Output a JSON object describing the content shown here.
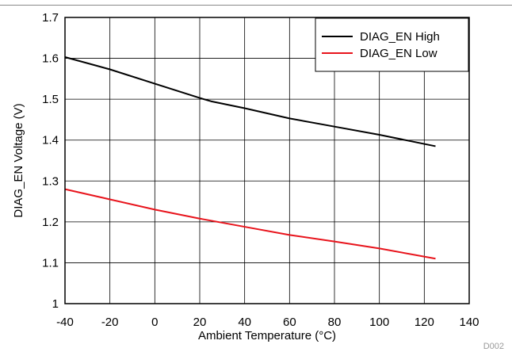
{
  "chart_data": {
    "type": "line",
    "xlabel": "Ambient Temperature (°C)",
    "ylabel": "DIAG_EN Voltage (V)",
    "xlim": [
      -40,
      140
    ],
    "ylim": [
      1.0,
      1.7
    ],
    "xticks": [
      -40,
      -20,
      0,
      20,
      40,
      60,
      80,
      100,
      120,
      140
    ],
    "yticks": [
      1,
      1.1,
      1.2,
      1.3,
      1.4,
      1.5,
      1.6,
      1.7
    ],
    "xtick_labels": [
      "-40",
      "-20",
      "0",
      "20",
      "40",
      "60",
      "80",
      "100",
      "120",
      "140"
    ],
    "ytick_labels": [
      "1",
      "1.1",
      "1.2",
      "1.3",
      "1.4",
      "1.5",
      "1.6",
      "1.7"
    ],
    "grid": true,
    "legend_position": "top-right",
    "series": [
      {
        "name": "DIAG_EN High",
        "color": "#000000",
        "x": [
          -40,
          -20,
          0,
          20,
          25,
          40,
          60,
          80,
          100,
          125
        ],
        "y": [
          1.603,
          1.573,
          1.538,
          1.503,
          1.495,
          1.478,
          1.453,
          1.433,
          1.413,
          1.385
        ]
      },
      {
        "name": "DIAG_EN Low",
        "color": "#e8141c",
        "x": [
          -40,
          -20,
          0,
          20,
          25,
          40,
          60,
          80,
          100,
          125
        ],
        "y": [
          1.28,
          1.255,
          1.23,
          1.208,
          1.203,
          1.188,
          1.168,
          1.152,
          1.135,
          1.11
        ]
      }
    ]
  },
  "figure_code": "D002"
}
